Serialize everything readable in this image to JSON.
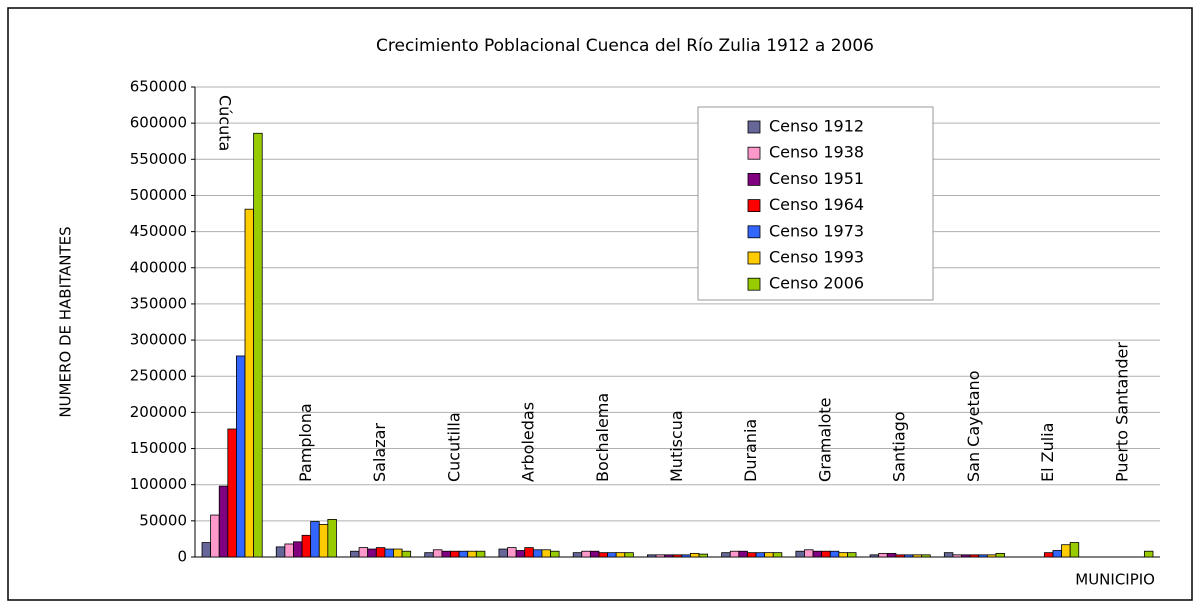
{
  "chart_data": {
    "type": "bar",
    "title": "Crecimiento Poblacional Cuenca del Río Zulia 1912 a 2006",
    "y_label": "NUMERO DE HABITANTES",
    "x_label": "MUNICIPIO",
    "categories": [
      "Cúcuta",
      "Pamplona",
      "Salazar",
      "Cucutilla",
      "Arboledas",
      "Bochalema",
      "Mutiscua",
      "Durania",
      "Gramalote",
      "Santiago",
      "San Cayetano",
      "El Zulia",
      "Puerto Santander"
    ],
    "series": [
      {
        "name": "Censo 1912",
        "color": "#666699",
        "values": [
          20000,
          14000,
          8000,
          6000,
          11000,
          6000,
          3000,
          6000,
          8000,
          3000,
          6000,
          0,
          0
        ]
      },
      {
        "name": "Censo 1938",
        "color": "#ff99cc",
        "values": [
          58000,
          18000,
          13000,
          10000,
          13000,
          8000,
          3000,
          8000,
          10000,
          5000,
          3000,
          0,
          0
        ]
      },
      {
        "name": "Censo 1951",
        "color": "#800080",
        "values": [
          98000,
          21000,
          11000,
          8000,
          9000,
          8000,
          3000,
          8000,
          8000,
          5000,
          3000,
          0,
          0
        ]
      },
      {
        "name": "Censo 1964",
        "color": "#ff0000",
        "values": [
          177000,
          30000,
          13000,
          8000,
          13000,
          6000,
          3000,
          6000,
          8000,
          3000,
          3000,
          6000,
          0
        ]
      },
      {
        "name": "Censo 1973",
        "color": "#3366ff",
        "values": [
          278000,
          49000,
          11000,
          8000,
          10000,
          6000,
          3000,
          6000,
          8000,
          3000,
          3000,
          9000,
          0
        ]
      },
      {
        "name": "Censo 1993",
        "color": "#ffcc00",
        "values": [
          481000,
          45000,
          11000,
          8000,
          10000,
          6000,
          5000,
          6000,
          6000,
          3000,
          3000,
          17000,
          0
        ]
      },
      {
        "name": "Censo 2006",
        "color": "#99cc00",
        "values": [
          586000,
          52000,
          8000,
          8000,
          8000,
          6000,
          4000,
          6000,
          6000,
          3000,
          5000,
          20000,
          8000
        ]
      }
    ],
    "ylim": [
      0,
      650000
    ],
    "yticks": [
      0,
      50000,
      100000,
      150000,
      200000,
      250000,
      300000,
      350000,
      400000,
      450000,
      500000,
      550000,
      600000,
      650000
    ],
    "grid": true,
    "legend": "top-right"
  }
}
